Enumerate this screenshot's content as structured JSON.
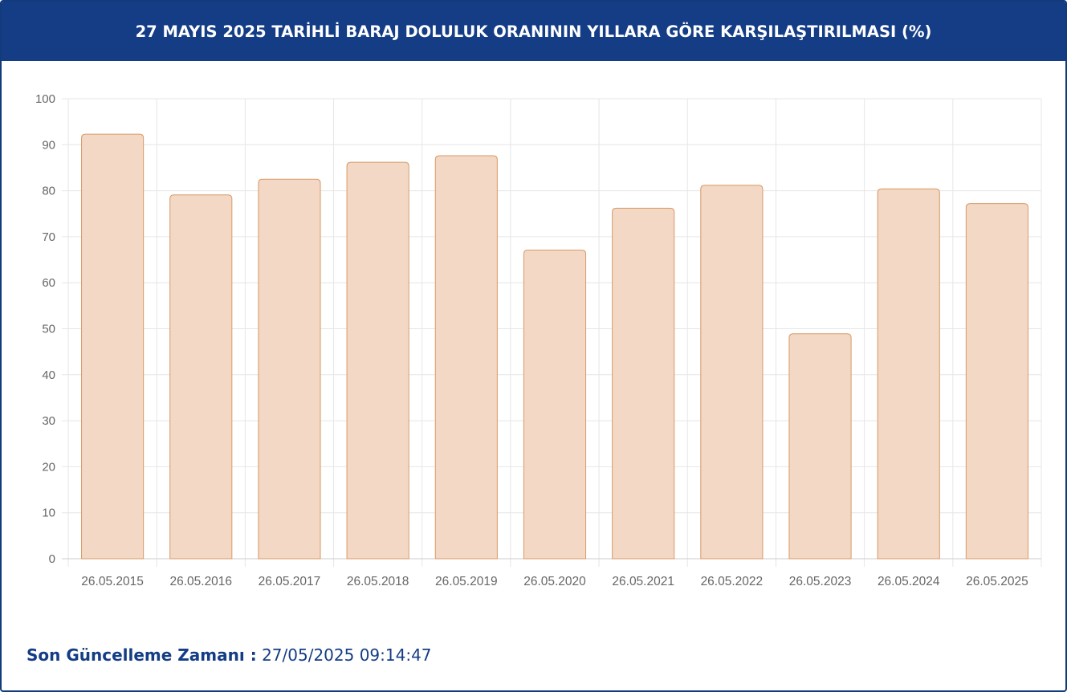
{
  "header": {
    "title": "27 MAYIS 2025 TARİHLİ BARAJ DOLULUK ORANININ YILLARA GÖRE KARŞILAŞTIRILMASI (%)"
  },
  "footer": {
    "label": "Son Güncelleme Zamanı :",
    "value": "27/05/2025 09:14:47"
  },
  "colors": {
    "header_bg": "#143d86",
    "bar_fill": "#f2d8c5",
    "bar_stroke": "#d99a66",
    "grid": "#e6e6e6",
    "text_accent": "#143d86"
  },
  "chart_data": {
    "type": "bar",
    "title": "27 MAYIS 2025 TARİHLİ BARAJ DOLULUK ORANININ YILLARA GÖRE KARŞILAŞTIRILMASI (%)",
    "categories": [
      "26.05.2015",
      "26.05.2016",
      "26.05.2017",
      "26.05.2018",
      "26.05.2019",
      "26.05.2020",
      "26.05.2021",
      "26.05.2022",
      "26.05.2023",
      "26.05.2024",
      "26.05.2025"
    ],
    "values": [
      92.3,
      79.1,
      82.5,
      86.2,
      87.6,
      67.1,
      76.2,
      81.2,
      48.9,
      80.4,
      77.2
    ],
    "ylim": [
      0,
      100
    ],
    "yticks": [
      0,
      10,
      20,
      30,
      40,
      50,
      60,
      70,
      80,
      90,
      100
    ],
    "grid": true,
    "legend": "none"
  }
}
